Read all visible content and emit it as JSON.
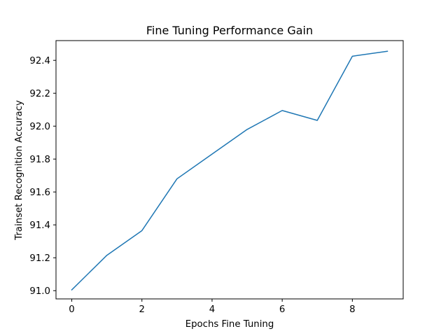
{
  "chart_data": {
    "type": "line",
    "title": "Fine Tuning Performance Gain",
    "xlabel": "Epochs Fine Tuning",
    "ylabel": "Trainset Recognition Accuracy",
    "xlim": [
      -0.45,
      9.45
    ],
    "ylim": [
      90.95,
      92.52
    ],
    "xticks": [
      0,
      2,
      4,
      6,
      8
    ],
    "xtick_labels": [
      "0",
      "2",
      "4",
      "6",
      "8"
    ],
    "yticks": [
      91.0,
      91.2,
      91.4,
      91.6,
      91.8,
      92.0,
      92.2,
      92.4
    ],
    "ytick_labels": [
      "91.0",
      "91.2",
      "91.4",
      "91.6",
      "91.8",
      "92.0",
      "92.2",
      "92.4"
    ],
    "grid": false,
    "series": [
      {
        "color": "#1f77b4",
        "x": [
          0,
          1,
          2,
          3,
          4,
          5,
          6,
          7,
          8,
          9
        ],
        "y": [
          91.005,
          91.215,
          91.365,
          91.68,
          91.83,
          91.98,
          92.095,
          92.035,
          92.425,
          92.455
        ]
      }
    ]
  }
}
